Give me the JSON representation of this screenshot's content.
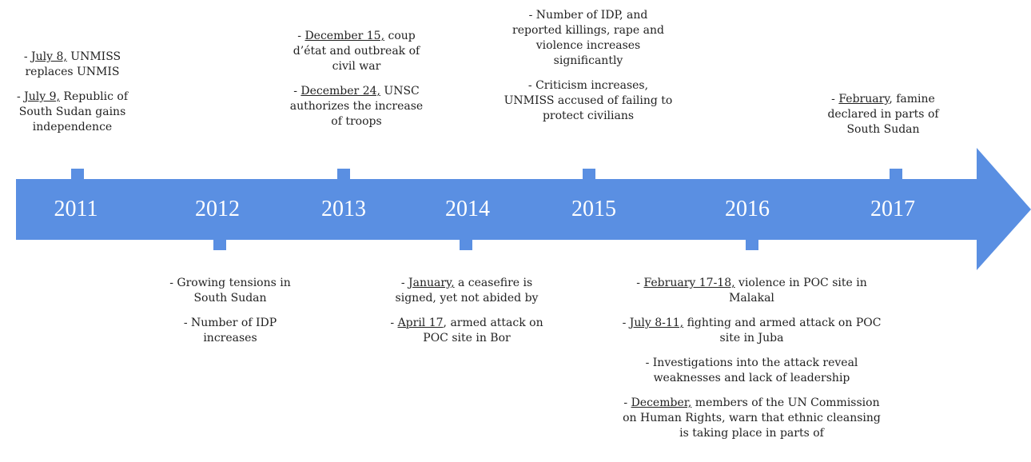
{
  "years": [
    "2011",
    "2012",
    "2013",
    "2014",
    "2015",
    "2016",
    "2017"
  ],
  "events": [
    {
      "items": [
        {
          "lead": "- ",
          "date": "July 8,",
          "rest": " UNMISS replaces UNMIS"
        },
        {
          "lead": "- ",
          "date": "July 9,",
          "rest": " Republic of South Sudan gains independence"
        }
      ]
    },
    {
      "items": [
        {
          "lead": "- ",
          "date": "December 15,",
          "rest": " coup d’état and outbreak of civil war"
        },
        {
          "lead": "- ",
          "date": "December 24,",
          "rest": " UNSC authorizes the increase of troops"
        }
      ]
    },
    {
      "items": [
        {
          "lead": "- Number of IDP, and reported killings, rape and violence increases significantly"
        },
        {
          "lead": "- Criticism increases, UNMISS accused of failing to protect civilians"
        }
      ]
    },
    {
      "items": [
        {
          "lead": "- ",
          "date": "February",
          "rest": ", famine declared in parts of South Sudan"
        }
      ]
    },
    {
      "items": [
        {
          "lead": "- Growing tensions in South Sudan"
        },
        {
          "lead": "- Number of IDP increases"
        }
      ]
    },
    {
      "items": [
        {
          "lead": "- ",
          "date": "January,",
          "rest": " a ceasefire is signed, yet not abided by"
        },
        {
          "lead": "- ",
          "date": "April 17",
          "rest": ", armed attack on POC site in Bor"
        }
      ]
    },
    {
      "items": [
        {
          "lead": "- ",
          "date": "February 17-18,",
          "rest": " violence in POC site in Malakal"
        },
        {
          "lead": "- ",
          "date": "July 8-11,",
          "rest": " fighting and armed attack on POC site in Juba"
        },
        {
          "lead": "- Investigations into the attack reveal weaknesses and lack of leadership"
        },
        {
          "lead": "-  ",
          "date": "December,",
          "rest": " members of the UN Commission on Human Rights, warn that ethnic cleansing is taking place in parts of"
        }
      ]
    }
  ]
}
